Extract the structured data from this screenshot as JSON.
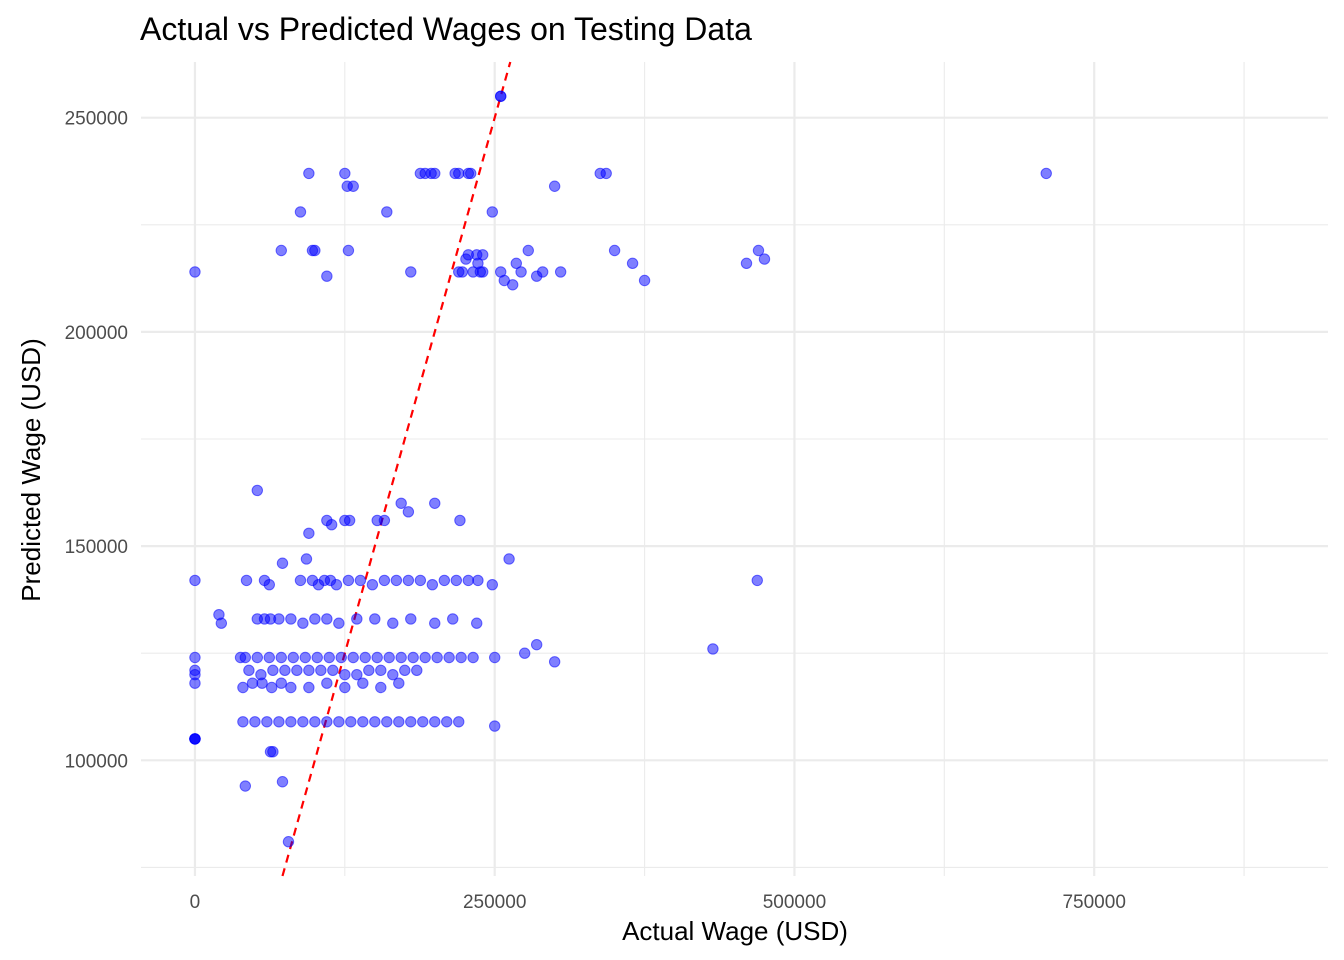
{
  "chart_data": {
    "type": "scatter",
    "title": "Actual vs Predicted Wages on Testing Data",
    "xlabel": "Actual Wage (USD)",
    "ylabel": "Predicted Wage (USD)",
    "xlim": [
      -45000,
      945000
    ],
    "ylim": [
      73000,
      263000
    ],
    "x_ticks": [
      0,
      250000,
      500000,
      750000
    ],
    "x_tick_labels": [
      "0",
      "250000",
      "500000",
      "750000"
    ],
    "y_ticks": [
      100000,
      150000,
      200000,
      250000
    ],
    "y_tick_labels": [
      "100000",
      "150000",
      "200000",
      "250000"
    ],
    "grid": true,
    "reference_line": {
      "type": "identity",
      "style": "dashed",
      "color": "#ff0000",
      "x_range": [
        73000,
        263000
      ]
    },
    "point_color": "#0000ff",
    "x": [
      0,
      0,
      0,
      0,
      0,
      0,
      0,
      0,
      0,
      0,
      343000,
      338000,
      710000,
      255000,
      255000,
      300000,
      88000,
      95000,
      125000,
      127000,
      132000,
      188000,
      192000,
      197000,
      200000,
      217000,
      220000,
      228000,
      230000,
      160000,
      248000,
      72000,
      98000,
      100000,
      128000,
      110000,
      180000,
      220000,
      223000,
      226000,
      228000,
      232000,
      238000,
      240000,
      236000,
      240000,
      235000,
      255000,
      258000,
      265000,
      268000,
      272000,
      278000,
      285000,
      290000,
      305000,
      350000,
      365000,
      375000,
      460000,
      470000,
      475000,
      52000,
      95000,
      110000,
      114000,
      125000,
      129000,
      152000,
      158000,
      172000,
      178000,
      200000,
      221000,
      262000,
      20000,
      22000,
      43000,
      58000,
      62000,
      73000,
      88000,
      93000,
      98000,
      103000,
      108000,
      113000,
      118000,
      128000,
      138000,
      148000,
      158000,
      168000,
      178000,
      188000,
      198000,
      208000,
      218000,
      228000,
      236000,
      248000,
      469000,
      52000,
      58000,
      63000,
      70000,
      80000,
      90000,
      100000,
      110000,
      120000,
      135000,
      150000,
      165000,
      180000,
      200000,
      215000,
      235000,
      250000,
      275000,
      285000,
      300000,
      432000,
      38000,
      42000,
      52000,
      62000,
      72000,
      82000,
      92000,
      102000,
      112000,
      122000,
      132000,
      142000,
      152000,
      162000,
      172000,
      182000,
      192000,
      202000,
      212000,
      222000,
      232000,
      45000,
      55000,
      65000,
      75000,
      85000,
      95000,
      105000,
      115000,
      125000,
      135000,
      145000,
      155000,
      165000,
      175000,
      185000,
      40000,
      50000,
      60000,
      70000,
      80000,
      90000,
      100000,
      110000,
      120000,
      130000,
      140000,
      150000,
      160000,
      170000,
      180000,
      190000,
      200000,
      210000,
      220000,
      250000,
      40000,
      48000,
      56000,
      64000,
      72000,
      80000,
      95000,
      110000,
      125000,
      140000,
      155000,
      170000,
      42000,
      65000,
      73000,
      63000,
      78000
    ],
    "y": [
      105000,
      105000,
      105000,
      105000,
      121000,
      120000,
      118000,
      124000,
      142000,
      214000,
      237000,
      237000,
      237000,
      255000,
      255000,
      234000,
      228000,
      237000,
      237000,
      234000,
      234000,
      237000,
      237000,
      237000,
      237000,
      237000,
      237000,
      237000,
      237000,
      228000,
      228000,
      219000,
      219000,
      219000,
      219000,
      213000,
      214000,
      214000,
      214000,
      217000,
      218000,
      214000,
      214000,
      218000,
      216000,
      214000,
      218000,
      214000,
      212000,
      211000,
      216000,
      214000,
      219000,
      213000,
      214000,
      214000,
      219000,
      216000,
      212000,
      216000,
      219000,
      217000,
      163000,
      153000,
      156000,
      155000,
      156000,
      156000,
      156000,
      156000,
      160000,
      158000,
      160000,
      156000,
      147000,
      134000,
      132000,
      142000,
      142000,
      141000,
      146000,
      142000,
      147000,
      142000,
      141000,
      142000,
      142000,
      141000,
      142000,
      142000,
      141000,
      142000,
      142000,
      142000,
      142000,
      141000,
      142000,
      142000,
      142000,
      142000,
      141000,
      142000,
      133000,
      133000,
      133000,
      133000,
      133000,
      132000,
      133000,
      133000,
      132000,
      133000,
      133000,
      132000,
      133000,
      132000,
      133000,
      132000,
      124000,
      125000,
      127000,
      123000,
      126000,
      124000,
      124000,
      124000,
      124000,
      124000,
      124000,
      124000,
      124000,
      124000,
      124000,
      124000,
      124000,
      124000,
      124000,
      124000,
      124000,
      124000,
      124000,
      124000,
      124000,
      124000,
      121000,
      120000,
      121000,
      121000,
      121000,
      121000,
      121000,
      121000,
      120000,
      120000,
      121000,
      121000,
      120000,
      121000,
      121000,
      109000,
      109000,
      109000,
      109000,
      109000,
      109000,
      109000,
      109000,
      109000,
      109000,
      109000,
      109000,
      109000,
      109000,
      109000,
      109000,
      109000,
      109000,
      109000,
      108000,
      117000,
      118000,
      118000,
      117000,
      118000,
      117000,
      117000,
      118000,
      117000,
      118000,
      117000,
      118000,
      94000,
      102000,
      95000,
      102000,
      81000
    ]
  }
}
